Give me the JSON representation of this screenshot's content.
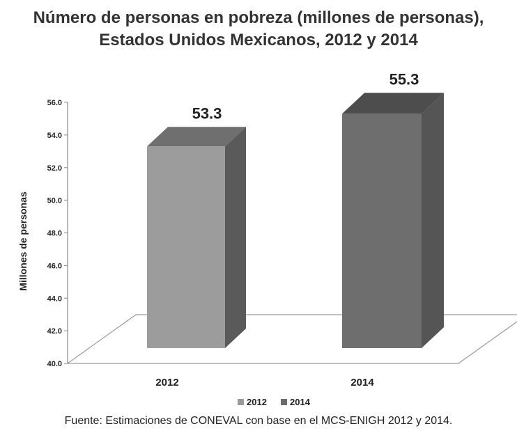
{
  "chart_data": {
    "type": "bar",
    "title_lines": [
      "Número de personas en pobreza (millones de personas),",
      "Estados Unidos Mexicanos, 2012 y 2014"
    ],
    "categories": [
      "2012",
      "2014"
    ],
    "series": [
      {
        "name": "2012",
        "values": [
          53.3,
          null
        ],
        "color": "#9a9a9a"
      },
      {
        "name": "2014",
        "values": [
          null,
          55.3
        ],
        "color": "#6b6b6b"
      }
    ],
    "values": [
      53.3,
      55.3
    ],
    "data_labels": [
      "53.3",
      "55.3"
    ],
    "ylabel": "Millones de personas",
    "xlabel": "",
    "ylim": [
      40.0,
      56.0
    ],
    "yticks": [
      "40.0",
      "42.0",
      "44.0",
      "46.0",
      "48.0",
      "50.0",
      "52.0",
      "54.0",
      "56.0"
    ],
    "legend": {
      "position": "bottom",
      "entries": [
        "2012",
        "2014"
      ]
    },
    "grid": false
  },
  "source_note": "Fuente: Estimaciones de CONEVAL con base en el MCS-ENIGH 2012 y 2014."
}
